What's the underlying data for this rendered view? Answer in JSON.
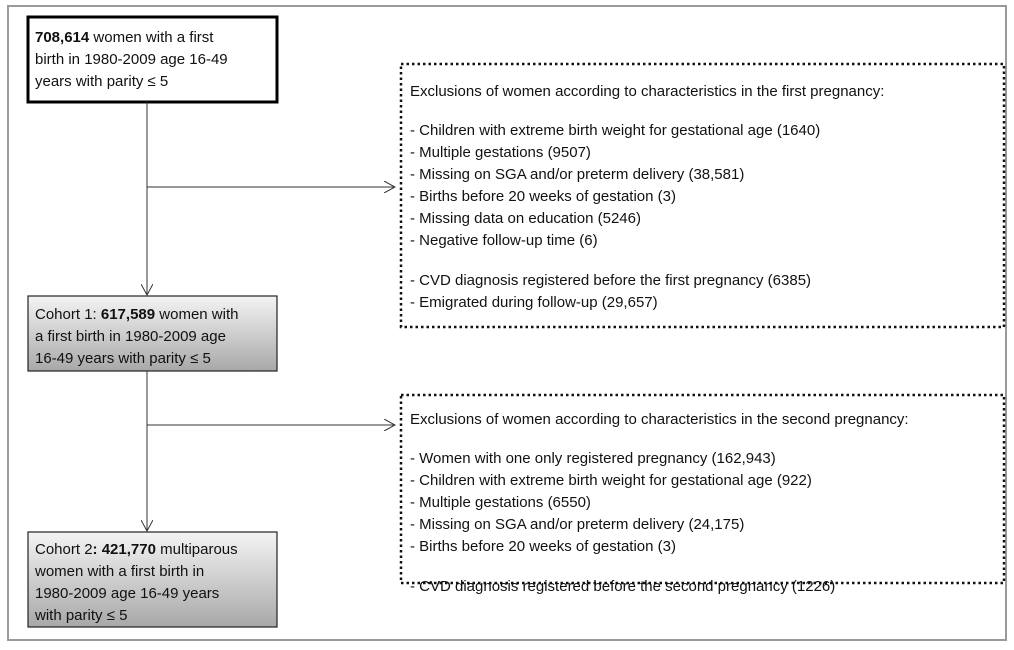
{
  "nodes": [
    {
      "lines": [
        [
          {
            "text": "708,614",
            "bold": true
          },
          {
            "text": " women with a first"
          }
        ],
        [
          {
            "text": "birth in 1980-2009 age 16-49"
          }
        ],
        [
          {
            "text": "years with parity ≤ 5"
          }
        ]
      ]
    },
    {
      "lines": [
        [
          {
            "text": "Cohort 1: "
          },
          {
            "text": "617,589",
            "bold": true
          },
          {
            "text": " women with"
          }
        ],
        [
          {
            "text": "a first birth in 1980-2009 age"
          }
        ],
        [
          {
            "text": "16-49 years with parity ≤ 5"
          }
        ]
      ]
    },
    {
      "lines": [
        [
          {
            "text": "Cohort 2"
          },
          {
            "text": ": 421,770",
            "bold": true
          },
          {
            "text": " multiparous"
          }
        ],
        [
          {
            "text": "women with a first birth in"
          }
        ],
        [
          {
            "text": "1980-2009 age 16-49 years"
          }
        ],
        [
          {
            "text": "with parity ≤ 5"
          }
        ]
      ]
    }
  ],
  "exclusions": [
    {
      "heading": "Exclusions  of women according to characteristics in the first pregnancy:",
      "groups": [
        [
          "- Children with extreme birth weight for gestational age (1640)",
          "- Multiple gestations (9507)",
          "- Missing on SGA and/or preterm delivery (38,581)",
          "- Births before 20 weeks of gestation (3)",
          "- Missing data on education (5246)",
          "- Negative follow-up time (6)"
        ],
        [
          "- CVD diagnosis registered before the first pregnancy (6385)",
          "- Emigrated during follow-up (29,657)"
        ]
      ]
    },
    {
      "heading": "Exclusions  of women according to characteristics in the second pregnancy:",
      "groups": [
        [
          "- Women with one only registered pregnancy (162,943)",
          "- Children with extreme birth weight for gestational age (922)",
          "- Multiple gestations (6550)",
          "- Missing on SGA and/or preterm delivery (24,175)",
          "- Births before 20 weeks of gestation (3)"
        ],
        [
          "- CVD diagnosis registered before the second pregnancy (1226)"
        ]
      ]
    }
  ]
}
